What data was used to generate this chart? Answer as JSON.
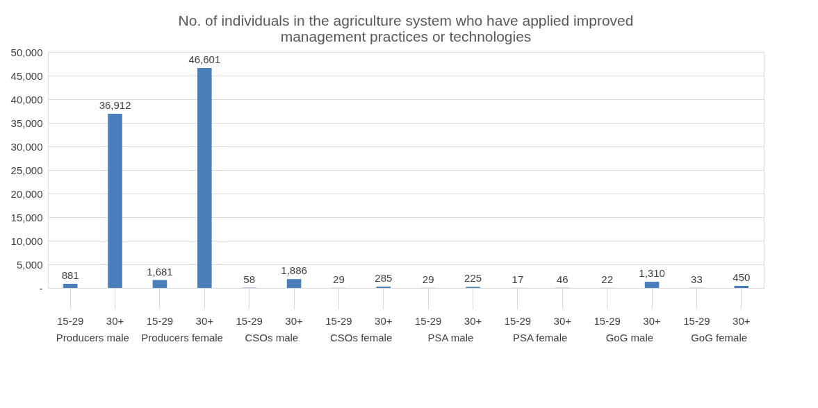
{
  "chart_data": {
    "type": "bar",
    "title": [
      "No. of individuals  in the agriculture system who have applied improved",
      "management practices or technologies"
    ],
    "categories": [
      "15-29",
      "30+",
      "15-29",
      "30+",
      "15-29",
      "30+",
      "15-29",
      "30+",
      "15-29",
      "30+",
      "15-29",
      "30+",
      "15-29",
      "30+",
      "15-29",
      "30+"
    ],
    "annotations": [
      "Producers male",
      "Producers female",
      "CSOs male",
      "CSOs female",
      "PSA male",
      "PSA female",
      "GoG male",
      "GoG female"
    ],
    "series": [
      {
        "color": "#4a7ebb",
        "values": [
          881,
          36912,
          1681,
          46601,
          58,
          1886,
          29,
          285,
          29,
          225,
          17,
          46,
          22,
          1310,
          33,
          450
        ],
        "value_labels": [
          "881",
          "36,912",
          "1,681",
          "46,601",
          "58",
          "1,886",
          "29",
          "285",
          "29",
          "225",
          "17",
          "46",
          "22",
          "1,310",
          "33",
          "450"
        ]
      }
    ],
    "ylim": [
      0,
      50000
    ],
    "yticks": [
      {
        "value": 0,
        "label": "-"
      },
      {
        "value": 5000,
        "label": "5,000"
      },
      {
        "value": 10000,
        "label": "10,000"
      },
      {
        "value": 15000,
        "label": "15,000"
      },
      {
        "value": 20000,
        "label": "20,000"
      },
      {
        "value": 25000,
        "label": "25,000"
      },
      {
        "value": 30000,
        "label": "30,000"
      },
      {
        "value": 35000,
        "label": "35,000"
      },
      {
        "value": 40000,
        "label": "40,000"
      },
      {
        "value": 45000,
        "label": "45,000"
      },
      {
        "value": 50000,
        "label": "50,000"
      }
    ],
    "grid": "y"
  }
}
